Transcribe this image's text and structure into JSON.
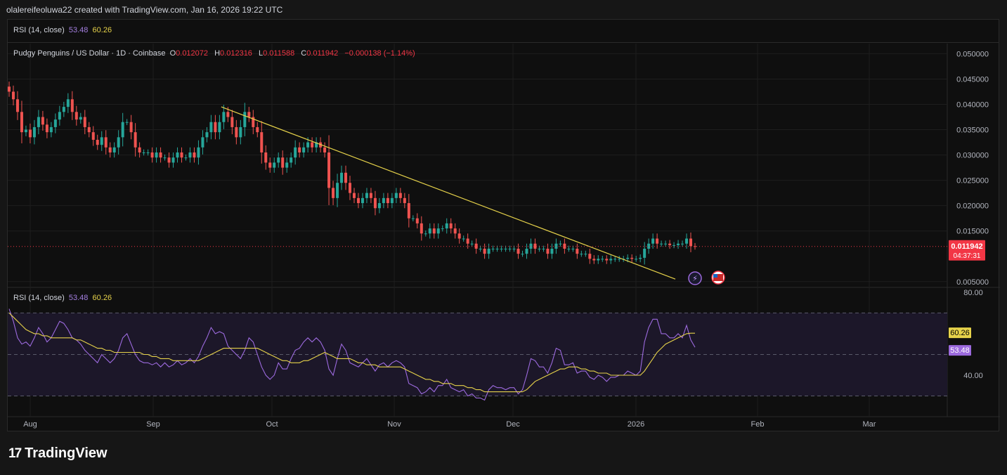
{
  "header": {
    "text": "olalereifeoluwa22 created with TradingView.com, Jan 16, 2026 19:22 UTC"
  },
  "topbar": {
    "label": "RSI (14, close)",
    "v1": "53.48",
    "v2": "60.26"
  },
  "legend": {
    "title": "Pudgy Penguins / US Dollar · 1D · Coinbase",
    "o_k": "O",
    "o": "0.012072",
    "h_k": "H",
    "h": "0.012316",
    "l_k": "L",
    "l": "0.011588",
    "c_k": "C",
    "c": "0.011942",
    "chg": "−0.000138 (−1.14%)"
  },
  "rsi_legend": {
    "label": "RSI (14, close)",
    "v1": "53.48",
    "v2": "60.26"
  },
  "price_badge": {
    "price": "0.011942",
    "countdown": "04:37:31"
  },
  "logo": {
    "mark": "17",
    "text": "TradingView"
  },
  "colors": {
    "up": "#26a69a",
    "down": "#ef5350",
    "trend": "#e6d24a",
    "rsi": "#9c6ade",
    "rsi_ma": "#e6d24a",
    "badge": "#f23645"
  },
  "chart_data": [
    {
      "type": "candlestick",
      "title": "Pudgy Penguins / US Dollar · 1D · Coinbase",
      "x_labels": [
        "Aug",
        "Sep",
        "Oct",
        "Nov",
        "Dec",
        "2026",
        "Feb",
        "Mar"
      ],
      "y_ticks": [
        "0.050000",
        "0.045000",
        "0.040000",
        "0.035000",
        "0.030000",
        "0.025000",
        "0.020000",
        "0.015000",
        "0.005000"
      ],
      "ylim": [
        0.004,
        0.052
      ],
      "close": [
        0.0425,
        0.041,
        0.0385,
        0.0345,
        0.035,
        0.0335,
        0.0355,
        0.0375,
        0.036,
        0.0345,
        0.0355,
        0.037,
        0.0385,
        0.0395,
        0.041,
        0.0385,
        0.037,
        0.0375,
        0.0355,
        0.0345,
        0.033,
        0.032,
        0.0335,
        0.0315,
        0.0305,
        0.0315,
        0.0335,
        0.0365,
        0.0365,
        0.0345,
        0.0315,
        0.0305,
        0.0305,
        0.0305,
        0.0295,
        0.0305,
        0.0295,
        0.0295,
        0.0285,
        0.0295,
        0.0305,
        0.0295,
        0.0295,
        0.0305,
        0.0295,
        0.0315,
        0.0335,
        0.0345,
        0.0365,
        0.0345,
        0.0365,
        0.0385,
        0.0375,
        0.0355,
        0.0335,
        0.0355,
        0.0385,
        0.0375,
        0.0355,
        0.0345,
        0.0305,
        0.0285,
        0.0275,
        0.0285,
        0.0295,
        0.0275,
        0.0285,
        0.0295,
        0.0315,
        0.0305,
        0.0315,
        0.0325,
        0.0315,
        0.0325,
        0.0315,
        0.0305,
        0.0235,
        0.0215,
        0.0245,
        0.0265,
        0.0245,
        0.0225,
        0.0215,
        0.0205,
        0.0215,
        0.0225,
        0.0215,
        0.0195,
        0.0205,
        0.0215,
        0.0205,
        0.0215,
        0.0225,
        0.0215,
        0.0205,
        0.0175,
        0.0175,
        0.0165,
        0.0145,
        0.0145,
        0.0155,
        0.0145,
        0.0155,
        0.0155,
        0.0165,
        0.0155,
        0.0145,
        0.0135,
        0.0135,
        0.0125,
        0.0125,
        0.0115,
        0.0115,
        0.0105,
        0.0115,
        0.0115,
        0.0115,
        0.0115,
        0.0115,
        0.0115,
        0.0115,
        0.0105,
        0.0105,
        0.0115,
        0.0125,
        0.0115,
        0.0115,
        0.0115,
        0.0105,
        0.0115,
        0.0125,
        0.0125,
        0.0115,
        0.0115,
        0.0115,
        0.0105,
        0.0105,
        0.0105,
        0.0095,
        0.0092,
        0.0095,
        0.0095,
        0.0092,
        0.0095,
        0.0095,
        0.0095,
        0.0095,
        0.0097,
        0.0095,
        0.0095,
        0.0097,
        0.0115,
        0.0125,
        0.0135,
        0.0125,
        0.0125,
        0.0125,
        0.0122,
        0.0122,
        0.0125,
        0.0125,
        0.0135,
        0.012,
        0.01194
      ],
      "trendline": [
        {
          "x": "Sep 18",
          "y": 0.0395
        },
        {
          "x": "Jan 11",
          "y": 0.0055
        }
      ],
      "last_price": "0.011942"
    },
    {
      "type": "line",
      "title": "RSI (14, close)",
      "series": [
        {
          "name": "RSI",
          "values": [
            72,
            66,
            58,
            55,
            56,
            54,
            58,
            63,
            60,
            56,
            58,
            62,
            66,
            65,
            62,
            58,
            57,
            55,
            52,
            50,
            48,
            46,
            50,
            48,
            46,
            48,
            52,
            58,
            60,
            55,
            50,
            47,
            46,
            46,
            45,
            46,
            44,
            46,
            44,
            45,
            47,
            45,
            46,
            48,
            46,
            49,
            54,
            58,
            63,
            60,
            61,
            60,
            54,
            52,
            50,
            48,
            52,
            58,
            56,
            50,
            44,
            40,
            38,
            40,
            46,
            43,
            43,
            48,
            52,
            53,
            56,
            58,
            56,
            58,
            56,
            52,
            43,
            40,
            48,
            55,
            52,
            46,
            45,
            44,
            46,
            48,
            45,
            42,
            45,
            46,
            44,
            46,
            47,
            46,
            44,
            36,
            35,
            34,
            31,
            32,
            34,
            32,
            35,
            35,
            38,
            34,
            33,
            32,
            33,
            30,
            31,
            29,
            29,
            28,
            33,
            35,
            34,
            34,
            33,
            34,
            34,
            31,
            33,
            40,
            48,
            47,
            44,
            44,
            41,
            46,
            53,
            52,
            45,
            45,
            46,
            41,
            42,
            42,
            39,
            38,
            40,
            39,
            37,
            39,
            39,
            40,
            40,
            42,
            41,
            40,
            42,
            56,
            63,
            67,
            67,
            60,
            60,
            58,
            58,
            60,
            58,
            64,
            57,
            53.48
          ]
        },
        {
          "name": "RSI MA",
          "values": [
            70,
            68,
            66,
            64,
            62,
            61,
            60,
            60,
            59,
            59,
            58,
            58,
            58,
            58,
            58,
            58,
            57,
            57,
            56,
            55,
            54,
            53,
            53,
            52,
            52,
            51,
            51,
            51,
            51,
            51,
            51,
            51,
            50,
            50,
            49,
            49,
            48,
            48,
            48,
            47,
            47,
            47,
            47,
            47,
            47,
            47,
            48,
            49,
            50,
            51,
            52,
            53,
            53,
            53,
            53,
            53,
            53,
            53,
            53,
            53,
            52,
            51,
            50,
            49,
            48,
            47,
            47,
            46,
            46,
            46,
            47,
            47,
            48,
            49,
            50,
            51,
            50,
            49,
            48,
            48,
            48,
            48,
            47,
            46,
            46,
            45,
            45,
            45,
            44,
            44,
            44,
            44,
            44,
            44,
            43,
            42,
            41,
            40,
            39,
            38,
            38,
            37,
            37,
            36,
            36,
            36,
            35,
            35,
            35,
            34,
            34,
            33,
            33,
            32,
            32,
            32,
            32,
            32,
            32,
            32,
            32,
            32,
            32,
            33,
            35,
            37,
            38,
            39,
            40,
            41,
            42,
            43,
            43,
            44,
            44,
            44,
            43,
            43,
            42,
            42,
            41,
            41,
            41,
            40,
            40,
            40,
            40,
            40,
            40,
            40,
            40,
            42,
            45,
            48,
            51,
            53,
            55,
            56,
            57,
            58,
            59,
            60,
            60.26,
            60.26
          ]
        }
      ],
      "y_ticks": [
        "80.00",
        "40.00"
      ],
      "ylim": [
        20,
        82
      ],
      "bands": [
        70,
        50,
        30
      ]
    }
  ]
}
